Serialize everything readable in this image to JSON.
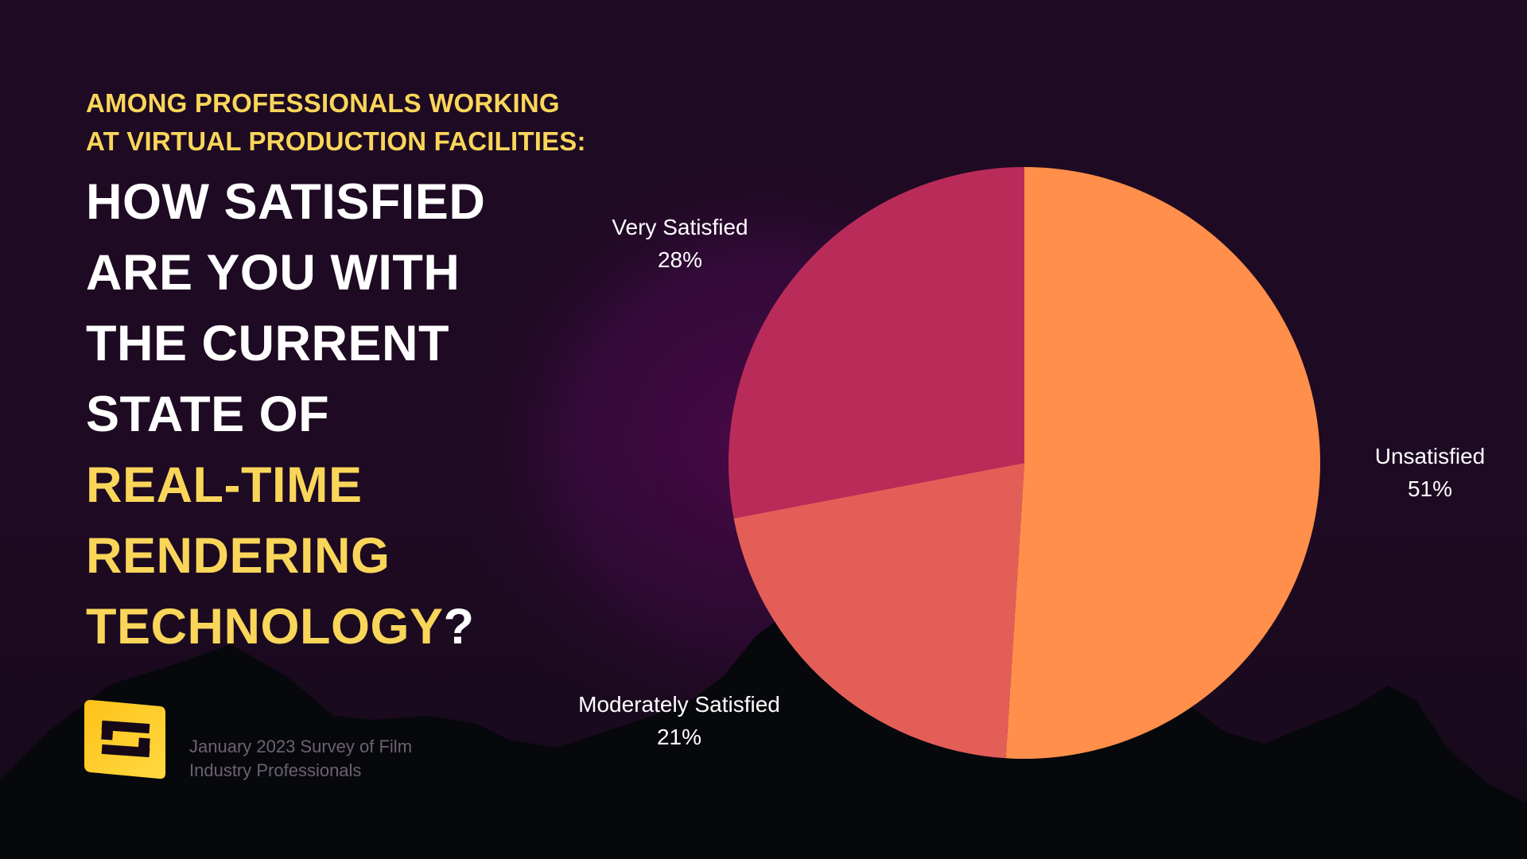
{
  "subtitle": {
    "line1": "AMONG PROFESSIONALS WORKING",
    "line2": "AT VIRTUAL PRODUCTION FACILITIES:"
  },
  "headline": {
    "line1": "HOW SATISFIED",
    "line2": "ARE YOU WITH",
    "line3": "THE CURRENT",
    "line4": "STATE OF",
    "line5": "REAL-TIME",
    "line6": "RENDERING",
    "line7_highlight": "TECHNOLOGY",
    "line7_end": "?"
  },
  "footnote": {
    "line1": "January 2023 Survey of Film",
    "line2": "Industry Professionals"
  },
  "colors": {
    "background": "#1e0a22",
    "accent_yellow": "#f9d65a"
  },
  "chart_data": {
    "type": "pie",
    "slices": [
      {
        "label": "Unsatisfied",
        "value_label": "51%",
        "value": 51,
        "color": "#ff8f4a"
      },
      {
        "label": "Moderately Satisfied",
        "value_label": "21%",
        "value": 21,
        "color": "#e45e58"
      },
      {
        "label": "Very Satisfied",
        "value_label": "28%",
        "value": 28,
        "color": "#b92c5a"
      }
    ]
  }
}
